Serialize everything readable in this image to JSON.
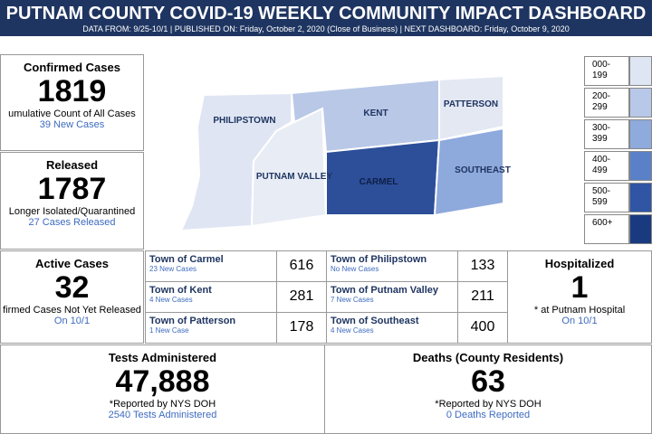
{
  "header": {
    "title": "PUTNAM COUNTY COVID-19 WEEKLY COMMUNITY IMPACT DASHBOARD",
    "subtitle": "DATA FROM: 9/25-10/1 | PUBLISHED ON:  Friday, October 2, 2020 (Close of Business) | NEXT DASHBOARD:  Friday, October 9, 2020"
  },
  "confirmed": {
    "title": "Confirmed Cases",
    "value": "1819",
    "caption": "umulative Count of All Cases",
    "note": "39 New Cases"
  },
  "released": {
    "title": "Released",
    "value": "1787",
    "caption": "Longer Isolated/Quarantined",
    "note": "27 Cases Released"
  },
  "active": {
    "title": "Active Cases",
    "value": "32",
    "caption": "firmed Cases Not Yet Released",
    "note": "On 10/1"
  },
  "map": {
    "regions": [
      "PHILIPSTOWN",
      "KENT",
      "PATTERSON",
      "PUTNAM VALLEY",
      "CARMEL",
      "SOUTHEAST"
    ]
  },
  "legend": [
    "000-\n199",
    "200-\n299",
    "300-\n399",
    "400-\n499",
    "500-\n599",
    "600+"
  ],
  "towns": [
    {
      "name": "Town of Carmel",
      "note": "23 New Cases",
      "value": "616"
    },
    {
      "name": "Town of Kent",
      "note": "4 New Cases",
      "value": "281"
    },
    {
      "name": "Town of Patterson",
      "note": "1 New Case",
      "value": "178"
    },
    {
      "name": "Town of Philipstown",
      "note": "No New Cases",
      "value": "133"
    },
    {
      "name": "Town of Putnam Valley",
      "note": "7 New Cases",
      "value": "211"
    },
    {
      "name": "Town of Southeast",
      "note": "4 New Cases",
      "value": "400"
    }
  ],
  "hospitalized": {
    "title": "Hospitalized",
    "value": "1",
    "caption": "* at Putnam Hospital",
    "note": "On 10/1"
  },
  "tests": {
    "title": "Tests Administered",
    "value": "47,888",
    "caption": "*Reported by NYS DOH",
    "note": "2540 Tests Administered"
  },
  "deaths": {
    "title": "Deaths (County Residents)",
    "value": "63",
    "caption": "*Reported by NYS DOH",
    "note": "0 Deaths Reported"
  }
}
